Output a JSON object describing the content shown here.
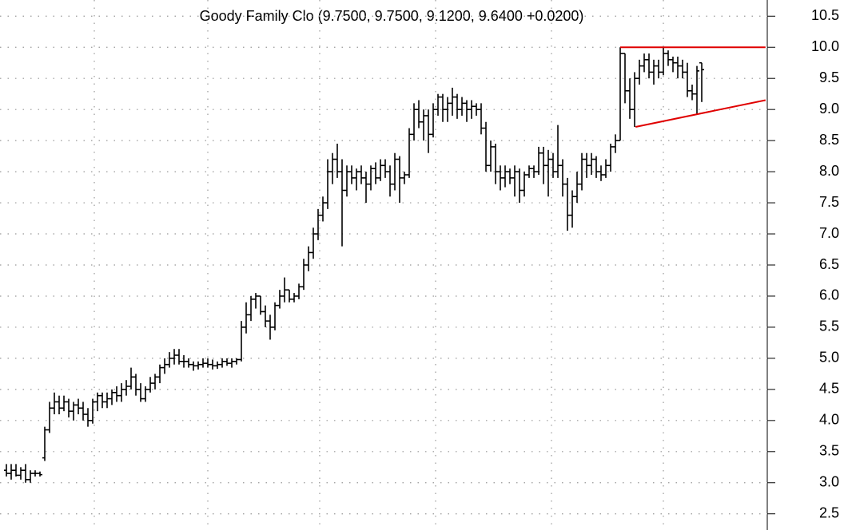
{
  "chart_data": {
    "type": "ohlc",
    "title": "Goody Family Clo (9.7500, 9.7500, 9.1200, 9.6400 +0.0200)",
    "ylim": [
      2.24,
      10.76
    ],
    "yticks": [
      2.5,
      {
        "value": 3,
        "label": "3.0"
      },
      3.5,
      {
        "value": 4,
        "label": "4.0"
      },
      4.5,
      {
        "value": 5,
        "label": "5.0"
      },
      5.5,
      {
        "value": 6,
        "label": "6.0"
      },
      6.5,
      {
        "value": 7,
        "label": "7.0"
      },
      7.5,
      {
        "value": 8,
        "label": "8.0"
      },
      8.5,
      {
        "value": 9,
        "label": "9.0"
      },
      9.5,
      {
        "value": 10,
        "label": "10.0"
      },
      10.5
    ],
    "grid": true,
    "series": [
      {
        "color": "#000000",
        "ohlc": [
          [
            3.2,
            3.3,
            3.1,
            3.15
          ],
          [
            3.15,
            3.3,
            3.05,
            3.2
          ],
          [
            3.2,
            3.3,
            3.1,
            3.12
          ],
          [
            3.12,
            3.25,
            3.05,
            3.2
          ],
          [
            3.2,
            3.3,
            3.0,
            3.05
          ],
          [
            3.05,
            3.2,
            3.0,
            3.15
          ],
          [
            3.15,
            3.2,
            3.1,
            3.15
          ],
          [
            3.15,
            3.18,
            3.1,
            3.13
          ],
          [
            3.4,
            3.9,
            3.35,
            3.85
          ],
          [
            3.85,
            4.3,
            3.8,
            4.2
          ],
          [
            4.2,
            4.45,
            4.1,
            4.3
          ],
          [
            4.3,
            4.4,
            4.1,
            4.2
          ],
          [
            4.2,
            4.4,
            4.15,
            4.3
          ],
          [
            4.3,
            4.35,
            4.05,
            4.15
          ],
          [
            4.15,
            4.3,
            4.0,
            4.25
          ],
          [
            4.25,
            4.35,
            4.1,
            4.2
          ],
          [
            4.2,
            4.3,
            4.0,
            4.1
          ],
          [
            4.1,
            4.2,
            3.9,
            4.0
          ],
          [
            4.0,
            4.35,
            3.95,
            4.3
          ],
          [
            4.3,
            4.45,
            4.15,
            4.4
          ],
          [
            4.4,
            4.45,
            4.2,
            4.3
          ],
          [
            4.3,
            4.45,
            4.2,
            4.35
          ],
          [
            4.35,
            4.5,
            4.25,
            4.45
          ],
          [
            4.45,
            4.55,
            4.3,
            4.4
          ],
          [
            4.4,
            4.6,
            4.3,
            4.5
          ],
          [
            4.5,
            4.65,
            4.4,
            4.55
          ],
          [
            4.55,
            4.85,
            4.5,
            4.7
          ],
          [
            4.7,
            4.75,
            4.4,
            4.5
          ],
          [
            4.5,
            4.6,
            4.3,
            4.35
          ],
          [
            4.35,
            4.55,
            4.3,
            4.5
          ],
          [
            4.5,
            4.7,
            4.45,
            4.6
          ],
          [
            4.6,
            4.75,
            4.5,
            4.7
          ],
          [
            4.7,
            4.9,
            4.6,
            4.85
          ],
          [
            4.85,
            5.0,
            4.75,
            4.9
          ],
          [
            4.9,
            5.1,
            4.85,
            5.0
          ],
          [
            5.0,
            5.15,
            4.9,
            5.05
          ],
          [
            5.05,
            5.15,
            4.9,
            4.95
          ],
          [
            4.95,
            5.05,
            4.85,
            4.95
          ],
          [
            4.95,
            5.0,
            4.85,
            4.9
          ],
          [
            4.9,
            4.95,
            4.8,
            4.88
          ],
          [
            4.88,
            4.95,
            4.82,
            4.9
          ],
          [
            4.9,
            5.0,
            4.85,
            4.92
          ],
          [
            4.92,
            5.0,
            4.85,
            4.9
          ],
          [
            4.9,
            4.98,
            4.82,
            4.88
          ],
          [
            4.88,
            4.95,
            4.83,
            4.9
          ],
          [
            4.9,
            5.0,
            4.85,
            4.95
          ],
          [
            4.95,
            5.0,
            4.88,
            4.92
          ],
          [
            4.92,
            5.0,
            4.85,
            4.95
          ],
          [
            4.95,
            5.0,
            4.9,
            4.98
          ],
          [
            4.98,
            5.6,
            4.95,
            5.5
          ],
          [
            5.5,
            5.9,
            5.4,
            5.7
          ],
          [
            5.7,
            6.0,
            5.6,
            5.95
          ],
          [
            5.95,
            6.05,
            5.8,
            6.0
          ],
          [
            6.0,
            6.0,
            5.7,
            5.75
          ],
          [
            5.75,
            5.85,
            5.5,
            5.6
          ],
          [
            5.6,
            5.7,
            5.3,
            5.5
          ],
          [
            5.5,
            5.9,
            5.45,
            5.85
          ],
          [
            5.85,
            6.1,
            5.8,
            6.0
          ],
          [
            6.0,
            6.3,
            5.9,
            6.1
          ],
          [
            6.1,
            6.1,
            5.9,
            5.95
          ],
          [
            5.95,
            6.05,
            5.9,
            6.0
          ],
          [
            6.0,
            6.2,
            5.95,
            6.15
          ],
          [
            6.15,
            6.6,
            6.1,
            6.5
          ],
          [
            6.5,
            6.8,
            6.4,
            6.7
          ],
          [
            6.7,
            7.1,
            6.6,
            7.0
          ],
          [
            7.0,
            7.4,
            6.9,
            7.3
          ],
          [
            7.3,
            7.6,
            7.2,
            7.5
          ],
          [
            7.5,
            8.2,
            7.4,
            8.0
          ],
          [
            8.0,
            8.3,
            7.8,
            8.2
          ],
          [
            8.2,
            8.45,
            7.9,
            8.0
          ],
          [
            8.0,
            8.2,
            6.8,
            7.7
          ],
          [
            7.7,
            8.1,
            7.6,
            8.0
          ],
          [
            8.0,
            8.1,
            7.8,
            7.9
          ],
          [
            7.9,
            8.05,
            7.7,
            8.0
          ],
          [
            8.0,
            8.1,
            7.8,
            7.9
          ],
          [
            7.9,
            8.0,
            7.5,
            7.8
          ],
          [
            7.8,
            8.1,
            7.7,
            8.05
          ],
          [
            8.05,
            8.15,
            7.8,
            7.9
          ],
          [
            7.9,
            8.2,
            7.85,
            8.1
          ],
          [
            8.1,
            8.2,
            7.9,
            8.0
          ],
          [
            8.0,
            8.1,
            7.6,
            7.8
          ],
          [
            7.8,
            8.3,
            7.7,
            8.2
          ],
          [
            8.2,
            8.25,
            7.5,
            7.9
          ],
          [
            7.9,
            8.0,
            7.8,
            7.95
          ],
          [
            7.95,
            8.7,
            7.9,
            8.6
          ],
          [
            8.6,
            9.1,
            8.5,
            9.0
          ],
          [
            9.0,
            9.15,
            8.7,
            8.8
          ],
          [
            8.8,
            9.0,
            8.5,
            8.9
          ],
          [
            8.9,
            9.0,
            8.3,
            8.6
          ],
          [
            8.6,
            9.1,
            8.55,
            9.0
          ],
          [
            9.0,
            9.25,
            8.9,
            9.2
          ],
          [
            9.2,
            9.25,
            8.8,
            9.0
          ],
          [
            9.0,
            9.2,
            8.8,
            9.1
          ],
          [
            9.1,
            9.35,
            8.9,
            9.2
          ],
          [
            9.2,
            9.25,
            8.85,
            9.0
          ],
          [
            9.0,
            9.2,
            8.9,
            9.1
          ],
          [
            9.1,
            9.15,
            8.8,
            9.0
          ],
          [
            9.0,
            9.15,
            8.85,
            9.05
          ],
          [
            9.05,
            9.1,
            8.9,
            9.0
          ],
          [
            9.0,
            9.1,
            8.6,
            8.7
          ],
          [
            8.7,
            8.8,
            8.0,
            8.1
          ],
          [
            8.1,
            8.5,
            8.0,
            8.4
          ],
          [
            8.4,
            8.45,
            7.8,
            8.0
          ],
          [
            8.0,
            8.1,
            7.7,
            7.9
          ],
          [
            7.9,
            8.1,
            7.75,
            8.0
          ],
          [
            8.0,
            8.05,
            7.8,
            7.9
          ],
          [
            7.9,
            8.1,
            7.6,
            8.0
          ],
          [
            8.0,
            8.05,
            7.5,
            7.7
          ],
          [
            7.7,
            8.0,
            7.6,
            7.95
          ],
          [
            7.95,
            8.1,
            7.9,
            8.05
          ],
          [
            8.05,
            8.1,
            7.9,
            8.0
          ],
          [
            8.0,
            8.4,
            7.95,
            8.3
          ],
          [
            8.3,
            8.4,
            7.8,
            8.1
          ],
          [
            8.1,
            8.35,
            7.6,
            8.2
          ],
          [
            8.2,
            8.3,
            7.9,
            8.0
          ],
          [
            8.0,
            8.75,
            7.9,
            8.1
          ],
          [
            8.1,
            8.2,
            7.6,
            7.8
          ],
          [
            7.8,
            7.9,
            7.05,
            7.3
          ],
          [
            7.3,
            7.7,
            7.1,
            7.6
          ],
          [
            7.6,
            8.0,
            7.5,
            7.8
          ],
          [
            7.8,
            8.3,
            7.7,
            8.2
          ],
          [
            8.2,
            8.3,
            7.9,
            8.1
          ],
          [
            8.1,
            8.3,
            7.95,
            8.2
          ],
          [
            8.2,
            8.25,
            7.9,
            8.0
          ],
          [
            8.0,
            8.1,
            7.85,
            7.95
          ],
          [
            7.95,
            8.2,
            7.9,
            8.1
          ],
          [
            8.1,
            8.45,
            8.0,
            8.4
          ],
          [
            8.4,
            8.6,
            8.3,
            8.5
          ],
          [
            8.5,
            10.0,
            8.5,
            9.9
          ],
          [
            9.9,
            9.9,
            9.1,
            9.3
          ],
          [
            9.3,
            9.5,
            8.85,
            9.0
          ],
          [
            9.0,
            9.6,
            8.72,
            9.5
          ],
          [
            9.5,
            9.8,
            9.4,
            9.7
          ],
          [
            9.7,
            9.9,
            9.6,
            9.8
          ],
          [
            9.8,
            9.9,
            9.5,
            9.6
          ],
          [
            9.6,
            9.8,
            9.4,
            9.7
          ],
          [
            9.7,
            9.8,
            9.5,
            9.6
          ],
          [
            9.6,
            10.0,
            9.55,
            9.9
          ],
          [
            9.9,
            9.95,
            9.7,
            9.8
          ],
          [
            9.8,
            9.85,
            9.6,
            9.75
          ],
          [
            9.75,
            9.85,
            9.5,
            9.7
          ],
          [
            9.7,
            9.8,
            9.5,
            9.6
          ],
          [
            9.6,
            9.75,
            9.2,
            9.3
          ],
          [
            9.3,
            9.4,
            9.15,
            9.25
          ],
          [
            9.25,
            9.7,
            8.92,
            9.62
          ],
          [
            9.75,
            9.75,
            9.12,
            9.64
          ]
        ]
      }
    ],
    "trendlines": [
      {
        "color": "#e00000",
        "x": [
          128,
          158.3
        ],
        "y": [
          10.0,
          10.0
        ]
      },
      {
        "color": "#e00000",
        "x": [
          131.2,
          158.3
        ],
        "y": [
          8.72,
          9.15
        ]
      }
    ]
  }
}
